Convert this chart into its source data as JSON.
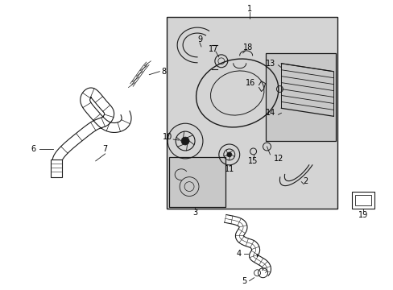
{
  "bg_color": "#ffffff",
  "fig_width": 4.89,
  "fig_height": 3.6,
  "dpi": 100,
  "lc": "#1a1a1a",
  "gray_fill": "#d4d4d4",
  "gray_fill2": "#c8c8c8",
  "lw_main": 0.7,
  "lw_thick": 1.0,
  "fs": 7.0
}
